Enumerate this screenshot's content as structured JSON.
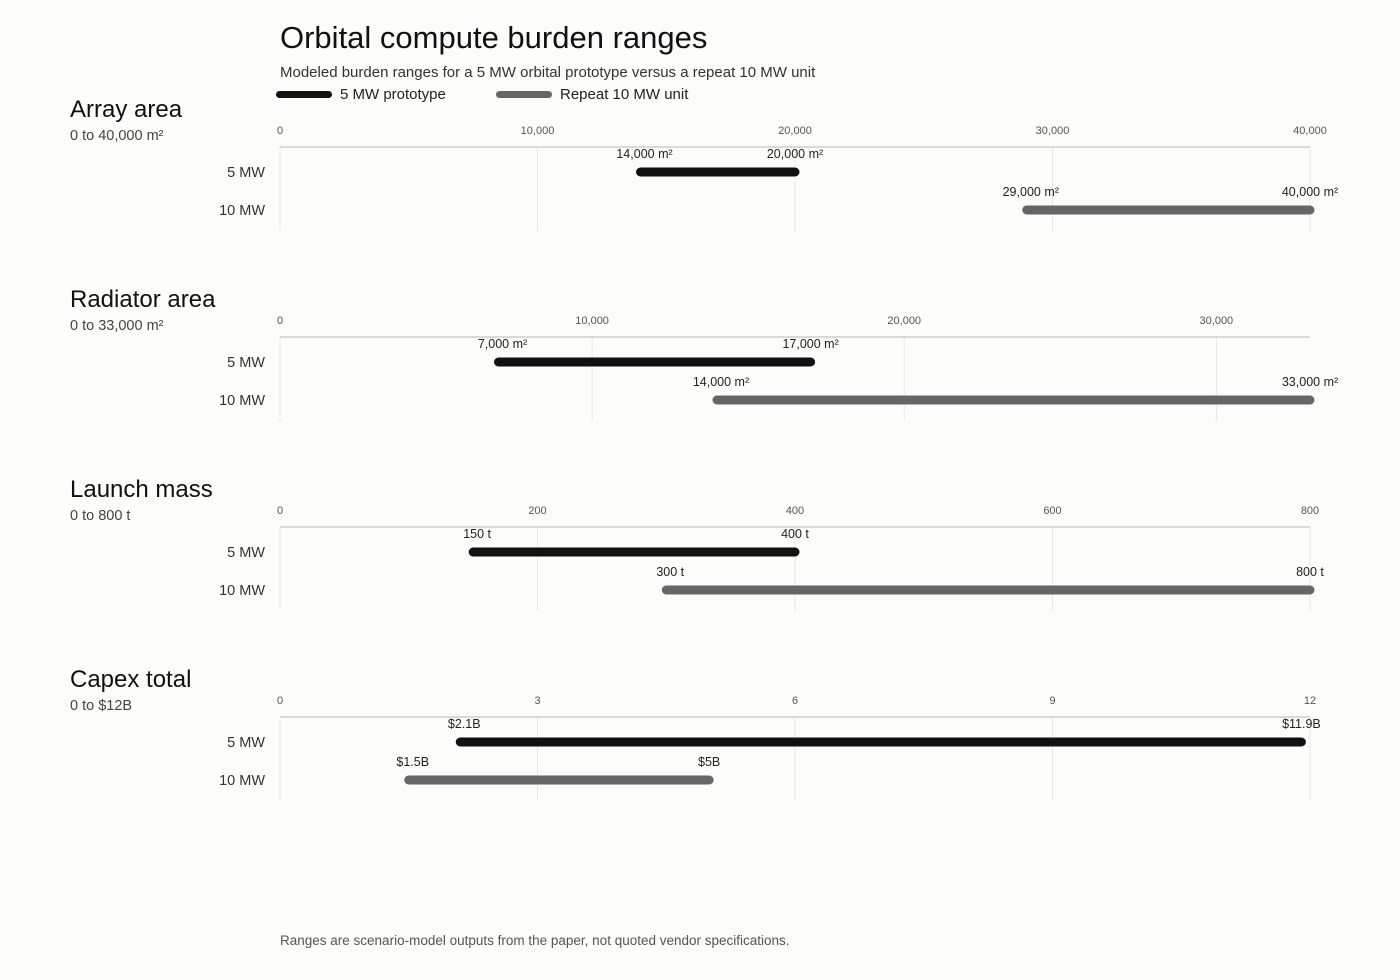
{
  "title": "Orbital compute burden ranges",
  "subtitle": "Modeled burden ranges for a 5 MW orbital prototype versus a repeat 10 MW unit",
  "legend": [
    {
      "label": "5 MW prototype",
      "color": "#111111"
    },
    {
      "label": "Repeat 10 MW unit",
      "color": "#666666"
    }
  ],
  "footnote": "Ranges are scenario-model outputs from the paper, not quoted vendor specifications.",
  "chart_data": [
    {
      "type": "range",
      "title": "Array area",
      "subtitle": "0 to 40,000 m²",
      "xlim": [
        0,
        40000
      ],
      "ticks": [
        0,
        10000,
        20000,
        30000,
        40000
      ],
      "tick_labels": [
        "0",
        "10,000",
        "20,000",
        "30,000",
        "40,000"
      ],
      "rows": [
        {
          "label": "5 MW",
          "low": 14000,
          "high": 20000,
          "low_label": "14,000 m²",
          "high_label": "20,000 m²"
        },
        {
          "label": "10 MW",
          "low": 29000,
          "high": 40000,
          "low_label": "29,000 m²",
          "high_label": "40,000 m²"
        }
      ]
    },
    {
      "type": "range",
      "title": "Radiator area",
      "subtitle": "0 to 33,000 m²",
      "xlim": [
        0,
        33000
      ],
      "ticks": [
        0,
        10000,
        20000,
        30000
      ],
      "tick_labels": [
        "0",
        "10,000",
        "20,000",
        "30,000"
      ],
      "rows": [
        {
          "label": "5 MW",
          "low": 7000,
          "high": 17000,
          "low_label": "7,000 m²",
          "high_label": "17,000 m²"
        },
        {
          "label": "10 MW",
          "low": 14000,
          "high": 33000,
          "low_label": "14,000 m²",
          "high_label": "33,000 m²"
        }
      ]
    },
    {
      "type": "range",
      "title": "Launch mass",
      "subtitle": "0 to 800 t",
      "xlim": [
        0,
        800
      ],
      "ticks": [
        0,
        200,
        400,
        600,
        800
      ],
      "tick_labels": [
        "0",
        "200",
        "400",
        "600",
        "800"
      ],
      "rows": [
        {
          "label": "5 MW",
          "low": 150,
          "high": 400,
          "low_label": "150 t",
          "high_label": "400 t"
        },
        {
          "label": "10 MW",
          "low": 300,
          "high": 800,
          "low_label": "300 t",
          "high_label": "800 t"
        }
      ]
    },
    {
      "type": "range",
      "title": "Capex total",
      "subtitle": "0 to $12B",
      "xlim": [
        0,
        12
      ],
      "ticks": [
        0,
        3,
        6,
        9,
        12
      ],
      "tick_labels": [
        "0",
        "3",
        "6",
        "9",
        "12"
      ],
      "rows": [
        {
          "label": "5 MW",
          "low": 2.1,
          "high": 11.9,
          "low_label": "$2.1B",
          "high_label": "$11.9B"
        },
        {
          "label": "10 MW",
          "low": 1.5,
          "high": 5,
          "low_label": "$1.5B",
          "high_label": "$5B"
        }
      ]
    }
  ]
}
